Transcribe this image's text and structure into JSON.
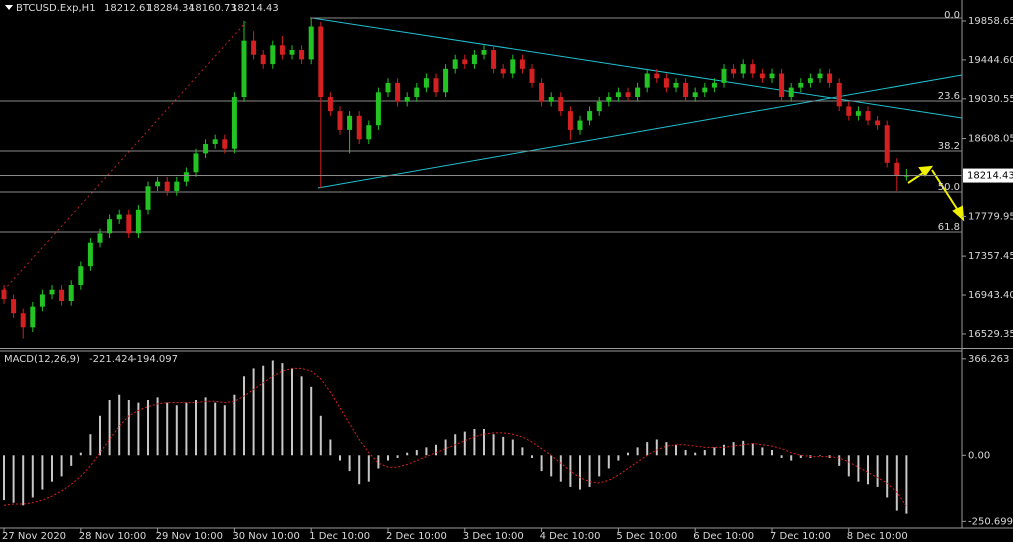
{
  "chart_data": [
    {
      "type": "candlestick",
      "symbol": "BTCUSD.Exp,H1",
      "categories": [
        "27 Nov 2020",
        null,
        null,
        null,
        null,
        null,
        null,
        null,
        "28 Nov 10:00",
        null,
        null,
        null,
        null,
        null,
        null,
        null,
        "29 Nov 10:00",
        null,
        null,
        null,
        null,
        null,
        null,
        null,
        "30 Nov 10:00",
        null,
        null,
        null,
        null,
        null,
        null,
        null,
        "1 Dec 10:00",
        null,
        null,
        null,
        null,
        null,
        null,
        null,
        "2 Dec 10:00",
        null,
        null,
        null,
        null,
        null,
        null,
        null,
        "3 Dec 10:00",
        null,
        null,
        null,
        null,
        null,
        null,
        null,
        "4 Dec 10:00",
        null,
        null,
        null,
        null,
        null,
        null,
        null,
        "5 Dec 10:00",
        null,
        null,
        null,
        null,
        null,
        null,
        null,
        "6 Dec 10:00",
        null,
        null,
        null,
        null,
        null,
        null,
        null,
        "7 Dec 10:00",
        null,
        null,
        null,
        null,
        null,
        null,
        null,
        "8 Dec 10:00",
        null,
        null,
        null,
        null,
        null,
        null
      ],
      "open": [
        17000,
        16900,
        16750,
        16600,
        16820,
        16950,
        17000,
        16880,
        17050,
        17250,
        17500,
        17600,
        17750,
        17800,
        17600,
        17850,
        18100,
        18150,
        18050,
        18150,
        18250,
        18450,
        18550,
        18600,
        18500,
        19050,
        19650,
        19500,
        19400,
        19600,
        19500,
        19550,
        19450,
        19800,
        19050,
        18900,
        18700,
        18850,
        18600,
        18750,
        19100,
        19200,
        19000,
        19050,
        19150,
        19250,
        19100,
        19350,
        19450,
        19400,
        19500,
        19550,
        19350,
        19300,
        19450,
        19350,
        19200,
        19000,
        19050,
        18900,
        18700,
        18800,
        18900,
        19000,
        19050,
        19100,
        19050,
        19150,
        19300,
        19250,
        19150,
        19200,
        19050,
        19100,
        19150,
        19200,
        19350,
        19300,
        19400,
        19300,
        19250,
        19300,
        19050,
        19150,
        19200,
        19250,
        19300,
        19200,
        18950,
        18850,
        18900,
        18800,
        18750,
        18350,
        18212.61
      ],
      "high": [
        17050,
        16950,
        16800,
        16870,
        17000,
        17050,
        17050,
        17100,
        17300,
        17550,
        17650,
        17800,
        17850,
        17850,
        17900,
        18150,
        18200,
        18200,
        18200,
        18300,
        18500,
        18600,
        18650,
        18650,
        19100,
        19860,
        19750,
        19550,
        19650,
        19700,
        19600,
        19600,
        19890,
        19850,
        19100,
        18950,
        18900,
        18900,
        18800,
        19150,
        19250,
        19250,
        19100,
        19200,
        19300,
        19300,
        19400,
        19500,
        19500,
        19550,
        19600,
        19600,
        19400,
        19500,
        19500,
        19400,
        19250,
        19100,
        19100,
        18950,
        18850,
        18950,
        19050,
        19100,
        19150,
        19150,
        19200,
        19350,
        19350,
        19300,
        19250,
        19250,
        19150,
        19200,
        19250,
        19400,
        19400,
        19450,
        19450,
        19350,
        19350,
        19350,
        19200,
        19250,
        19300,
        19350,
        19350,
        19250,
        19000,
        18950,
        18950,
        18850,
        18800,
        18400,
        18284.34
      ],
      "low": [
        16850,
        16700,
        16480,
        16550,
        16770,
        16900,
        16830,
        16830,
        17000,
        17200,
        17450,
        17550,
        17700,
        17550,
        17550,
        17800,
        18050,
        18000,
        18000,
        18100,
        18200,
        18400,
        18500,
        18450,
        18450,
        19000,
        19450,
        19350,
        19350,
        19450,
        19450,
        19400,
        19400,
        18080,
        18850,
        18650,
        18450,
        18550,
        18550,
        18700,
        19050,
        18950,
        18950,
        19000,
        19100,
        19050,
        19050,
        19300,
        19350,
        19350,
        19450,
        19300,
        19250,
        19250,
        19300,
        19150,
        18950,
        18950,
        18850,
        18590,
        18650,
        18750,
        18850,
        18950,
        19000,
        19000,
        19000,
        19100,
        19200,
        19100,
        19100,
        19000,
        19000,
        19050,
        19100,
        19150,
        19250,
        19250,
        19250,
        19200,
        19200,
        19000,
        19000,
        19100,
        19150,
        19200,
        19150,
        18900,
        18800,
        18800,
        18750,
        18700,
        18300,
        18050,
        18160.73
      ],
      "close": [
        16900,
        16750,
        16600,
        16820,
        16950,
        17000,
        16880,
        17050,
        17250,
        17500,
        17600,
        17750,
        17800,
        17600,
        17850,
        18100,
        18150,
        18050,
        18150,
        18250,
        18450,
        18550,
        18600,
        18500,
        19050,
        19650,
        19500,
        19400,
        19600,
        19500,
        19550,
        19450,
        19800,
        19050,
        18900,
        18700,
        18850,
        18600,
        18750,
        19100,
        19200,
        19000,
        19050,
        19150,
        19250,
        19100,
        19350,
        19450,
        19400,
        19500,
        19550,
        19350,
        19300,
        19450,
        19350,
        19200,
        19000,
        19050,
        18900,
        18700,
        18800,
        18900,
        19000,
        19050,
        19100,
        19050,
        19150,
        19300,
        19250,
        19150,
        19200,
        19050,
        19100,
        19150,
        19200,
        19350,
        19300,
        19400,
        19300,
        19250,
        19300,
        19050,
        19150,
        19200,
        19250,
        19300,
        19200,
        18950,
        18850,
        18900,
        18800,
        18750,
        18350,
        18212.61,
        18214.43
      ],
      "ylim": [
        16380,
        20082
      ],
      "yticks": [
        19858.65,
        {
          "value": 19444.6,
          "label": "19444.60"
        },
        19030.55,
        18608.05,
        17779.95,
        17357.45,
        {
          "value": 16943.4,
          "label": "16943.40"
        },
        16529.35
      ],
      "fib_levels": [
        "0.0",
        "23.6",
        "38.2",
        "50.0",
        "61.8"
      ],
      "colors": {
        "up": "#22c322",
        "down": "#d42020"
      }
    },
    {
      "type": "macd",
      "title": "MACD(12,26,9)",
      "histogram": [
        -170,
        -180,
        -190,
        -160,
        -130,
        -100,
        -80,
        -40,
        10,
        80,
        150,
        210,
        230,
        210,
        200,
        210,
        220,
        200,
        190,
        200,
        210,
        220,
        200,
        190,
        230,
        300,
        330,
        340,
        360,
        350,
        330,
        300,
        260,
        150,
        60,
        -20,
        -60,
        -110,
        -100,
        -50,
        -20,
        -10,
        10,
        20,
        30,
        40,
        60,
        80,
        90,
        100,
        100,
        80,
        70,
        60,
        30,
        -10,
        -60,
        -80,
        -100,
        -120,
        -130,
        -120,
        -80,
        -50,
        -20,
        10,
        30,
        50,
        60,
        50,
        40,
        20,
        10,
        20,
        30,
        40,
        50,
        55,
        45,
        30,
        20,
        -10,
        -20,
        -10,
        -10,
        0,
        -10,
        -40,
        -80,
        -100,
        -110,
        -120,
        -160,
        -210,
        -221.424
      ],
      "signal": [
        -190,
        -185,
        -185,
        -180,
        -170,
        -155,
        -135,
        -110,
        -80,
        -40,
        10,
        60,
        110,
        150,
        170,
        185,
        195,
        200,
        200,
        200,
        200,
        205,
        205,
        200,
        205,
        225,
        250,
        275,
        300,
        320,
        330,
        330,
        320,
        290,
        240,
        180,
        120,
        60,
        10,
        -30,
        -45,
        -45,
        -35,
        -20,
        -5,
        10,
        25,
        40,
        55,
        70,
        80,
        85,
        85,
        80,
        70,
        50,
        25,
        0,
        -30,
        -60,
        -85,
        -100,
        -105,
        -95,
        -75,
        -50,
        -25,
        0,
        20,
        35,
        40,
        40,
        35,
        30,
        30,
        30,
        35,
        40,
        45,
        40,
        35,
        25,
        10,
        0,
        -5,
        -5,
        -5,
        -10,
        -25,
        -45,
        -65,
        -85,
        -105,
        -140,
        -194.097
      ],
      "ylim": [
        -276,
        396
      ],
      "yticks": [
        366.263,
        {
          "value": 0,
          "label": "0.00"
        },
        -250.699
      ],
      "colors": {
        "histogram": "#c8c8c8",
        "signal": "#e02020"
      }
    }
  ]
}
